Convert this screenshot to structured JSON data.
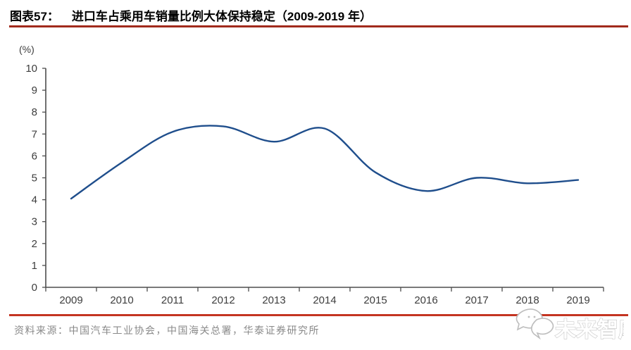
{
  "header": {
    "label": "图表57：",
    "title": "进口车占乘用车销量比例大体保持稳定（2009-2019 年）"
  },
  "chart_data": {
    "type": "line",
    "title": "进口车占乘用车销量比例大体保持稳定（2009-2019 年）",
    "ylabel": "(%)",
    "categories": [
      "2009",
      "2010",
      "2011",
      "2012",
      "2013",
      "2014",
      "2015",
      "2016",
      "2017",
      "2018",
      "2019"
    ],
    "series": [
      {
        "name": "进口车占乘用车销量比例",
        "values": [
          4.05,
          5.7,
          7.1,
          7.35,
          6.65,
          7.25,
          5.25,
          4.4,
          5.0,
          4.75,
          4.9
        ]
      }
    ],
    "ylim": [
      0,
      10
    ],
    "yticks": [
      0,
      1,
      2,
      3,
      4,
      5,
      6,
      7,
      8,
      9,
      10
    ],
    "grid": false,
    "legend": "none",
    "smooth": true
  },
  "footer": {
    "source": "资料来源：中国汽车工业协会，中国海关总署，华泰证券研究所"
  },
  "watermark": {
    "text": "未来智库"
  },
  "colors": {
    "line": "#1F4E8C",
    "rule_top": "#A12A1C",
    "rule_bottom": "#C43421",
    "axis": "#4D4D4D",
    "tick_label": "#3D3D3D"
  }
}
